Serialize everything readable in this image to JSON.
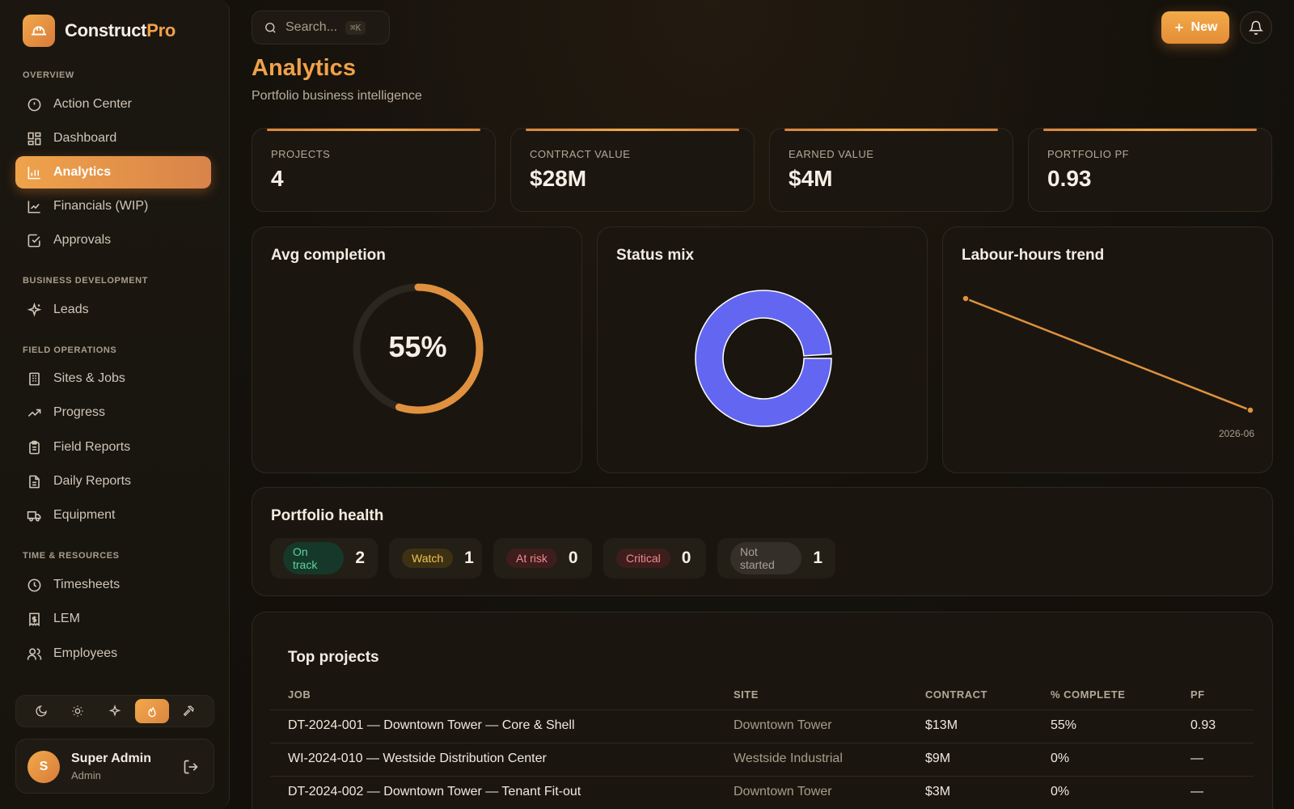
{
  "brand": {
    "name_main": "Construct",
    "name_accent": "Pro"
  },
  "sidebar": {
    "sections": {
      "overview": "OVERVIEW",
      "business": "BUSINESS DEVELOPMENT",
      "field": "FIELD OPERATIONS",
      "time": "TIME & RESOURCES"
    },
    "items": [
      {
        "label": "Action Center",
        "icon": "alert-circle-icon"
      },
      {
        "label": "Dashboard",
        "icon": "grid-icon"
      },
      {
        "label": "Analytics",
        "icon": "bar-chart-icon",
        "active": true
      },
      {
        "label": "Financials (WIP)",
        "icon": "line-chart-icon"
      },
      {
        "label": "Approvals",
        "icon": "check-square-icon"
      },
      {
        "label": "Leads",
        "icon": "sparkle-icon"
      },
      {
        "label": "Sites & Jobs",
        "icon": "building-icon"
      },
      {
        "label": "Progress",
        "icon": "trending-up-icon"
      },
      {
        "label": "Field Reports",
        "icon": "clipboard-icon"
      },
      {
        "label": "Daily Reports",
        "icon": "document-icon"
      },
      {
        "label": "Equipment",
        "icon": "truck-icon"
      },
      {
        "label": "Timesheets",
        "icon": "clock-icon"
      },
      {
        "label": "LEM",
        "icon": "receipt-icon"
      },
      {
        "label": "Employees",
        "icon": "users-icon"
      }
    ],
    "themes": [
      "moon-icon",
      "sun-icon",
      "sparkle-icon",
      "flame-icon",
      "hammer-icon"
    ],
    "user": {
      "initial": "S",
      "name": "Super Admin",
      "role": "Admin"
    }
  },
  "topbar": {
    "search_placeholder": "Search...",
    "search_shortcut": "⌘K",
    "new_label": "New"
  },
  "page": {
    "title": "Analytics",
    "subtitle": "Portfolio business intelligence"
  },
  "kpis": [
    {
      "label": "PROJECTS",
      "value": "4"
    },
    {
      "label": "CONTRACT VALUE",
      "value": "$28M"
    },
    {
      "label": "EARNED VALUE",
      "value": "$4M"
    },
    {
      "label": "PORTFOLIO PF",
      "value": "0.93"
    }
  ],
  "panels": {
    "avg_completion": {
      "title": "Avg completion",
      "value_text": "55%",
      "value": 0.55
    },
    "status_mix": {
      "title": "Status mix",
      "slices": [
        {
          "value": 0.99,
          "color": "#6366f1"
        }
      ]
    },
    "labour_trend": {
      "title": "Labour-hours trend",
      "x_label": "2026-06"
    }
  },
  "chart_data": {
    "type": "line",
    "title": "Labour-hours trend",
    "x": [
      "",
      "2026-06"
    ],
    "series": [
      {
        "values": [
          100,
          0
        ]
      }
    ],
    "colors": {
      "line": "#e0913f",
      "donut": "#6366f1",
      "gauge": "#e0913f"
    }
  },
  "health": {
    "title": "Portfolio health",
    "chips": [
      {
        "label": "On track",
        "count": "2",
        "fg": "#5dd39e",
        "bg": "#16382a"
      },
      {
        "label": "Watch",
        "count": "1",
        "fg": "#f2c14e",
        "bg": "#3d3114"
      },
      {
        "label": "At risk",
        "count": "0",
        "fg": "#f08b8b",
        "bg": "#3e1d1d"
      },
      {
        "label": "Critical",
        "count": "0",
        "fg": "#f28b8b",
        "bg": "#3e1d1d"
      },
      {
        "label": "Not started",
        "count": "1",
        "fg": "#a7a095",
        "bg": "#343029"
      }
    ]
  },
  "table": {
    "title": "Top projects",
    "columns": [
      "JOB",
      "SITE",
      "CONTRACT",
      "% COMPLETE",
      "PF"
    ],
    "rows": [
      [
        "DT-2024-001 — Downtown Tower — Core & Shell",
        "Downtown Tower",
        "$13M",
        "55%",
        "0.93"
      ],
      [
        "WI-2024-010 — Westside Distribution Center",
        "Westside Industrial",
        "$9M",
        "0%",
        "—"
      ],
      [
        "DT-2024-002 — Downtown Tower — Tenant Fit-out",
        "Downtown Tower",
        "$3M",
        "0%",
        "—"
      ]
    ]
  }
}
